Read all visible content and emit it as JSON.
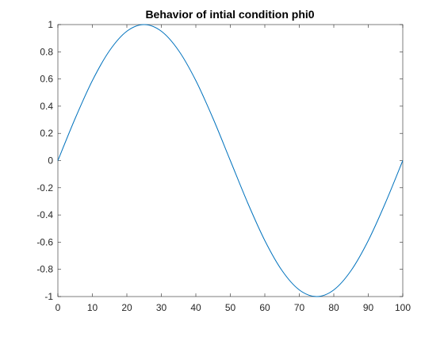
{
  "chart_data": {
    "type": "line",
    "title": "Behavior of  intial condition phi0",
    "xlabel": "",
    "ylabel": "",
    "xlim": [
      0,
      100
    ],
    "ylim": [
      -1,
      1
    ],
    "x_ticks": [
      0,
      10,
      20,
      30,
      40,
      50,
      60,
      70,
      80,
      90,
      100
    ],
    "y_ticks": [
      -1,
      -0.8,
      -0.6,
      -0.4,
      -0.2,
      0,
      0.2,
      0.4,
      0.6,
      0.8,
      1
    ],
    "x_tick_labels": [
      "0",
      "10",
      "20",
      "30",
      "40",
      "50",
      "60",
      "70",
      "80",
      "90",
      "100"
    ],
    "y_tick_labels": [
      "-1",
      "-0.8",
      "-0.6",
      "-0.4",
      "-0.2",
      "0",
      "0.2",
      "0.4",
      "0.6",
      "0.8",
      "1"
    ],
    "grid": false,
    "series": [
      {
        "color": "#0072BD",
        "x": [
          0,
          5,
          10,
          15,
          20,
          25,
          30,
          35,
          40,
          45,
          50,
          55,
          60,
          65,
          70,
          75,
          80,
          85,
          90,
          95,
          100
        ],
        "y": [
          0,
          0.309,
          0.588,
          0.809,
          0.951,
          1,
          0.951,
          0.809,
          0.588,
          0.309,
          0,
          -0.309,
          -0.588,
          -0.809,
          -0.951,
          -1,
          -0.951,
          -0.809,
          -0.588,
          -0.309,
          0
        ]
      }
    ]
  }
}
